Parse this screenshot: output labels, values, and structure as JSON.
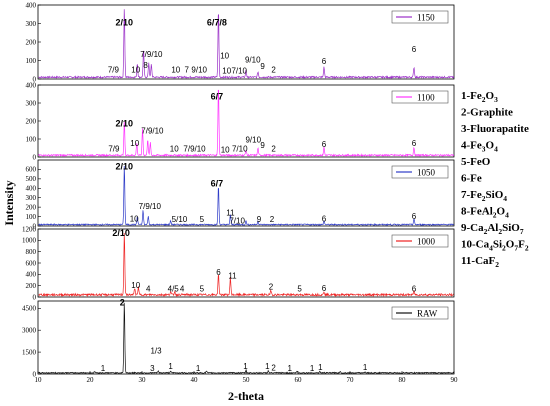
{
  "chart_data": {
    "type": "line",
    "xlabel": "2-theta",
    "ylabel": "Intensity",
    "xlim": [
      10,
      90
    ],
    "xticks": [
      "10",
      "20",
      "30",
      "40",
      "50",
      "60",
      "70",
      "80",
      "90"
    ],
    "panels": [
      {
        "name": "1150",
        "color": "#9b30c8",
        "ylim": [
          0,
          400
        ],
        "yticks": [
          "0",
          "100",
          "200",
          "300",
          "400"
        ],
        "baseline": 10,
        "peaks": [
          [
            26.6,
            380
          ],
          [
            29.1,
            75
          ],
          [
            30.3,
            150
          ],
          [
            31.3,
            80
          ],
          [
            31.8,
            70
          ],
          [
            44.7,
            370
          ],
          [
            50.0,
            40
          ],
          [
            52.3,
            30
          ],
          [
            65.0,
            55
          ],
          [
            82.3,
            55
          ]
        ],
        "labels": [
          {
            "t": "2/10",
            "x": 26.6,
            "y": 290,
            "bold": true
          },
          {
            "t": "6/7/8",
            "x": 44.4,
            "y": 290,
            "bold": true
          },
          {
            "t": "7/9",
            "x": 24.5,
            "y": 35
          },
          {
            "t": "10",
            "x": 28.8,
            "y": 35
          },
          {
            "t": "7/9/10",
            "x": 31.8,
            "y": 120
          },
          {
            "t": "8",
            "x": 30.7,
            "y": 60
          },
          {
            "t": "10",
            "x": 36.5,
            "y": 35
          },
          {
            "t": "7",
            "x": 38.6,
            "y": 35
          },
          {
            "t": "9/10",
            "x": 41.0,
            "y": 35
          },
          {
            "t": "10",
            "x": 45.9,
            "y": 110
          },
          {
            "t": "10",
            "x": 46.3,
            "y": 30
          },
          {
            "t": "7/10",
            "x": 48.7,
            "y": 30
          },
          {
            "t": "9/10",
            "x": 51.3,
            "y": 90
          },
          {
            "t": "9",
            "x": 53.2,
            "y": 55
          },
          {
            "t": "2",
            "x": 55.3,
            "y": 35
          },
          {
            "t": "6",
            "x": 65.0,
            "y": 80
          },
          {
            "t": "6",
            "x": 82.3,
            "y": 145
          }
        ]
      },
      {
        "name": "1100",
        "color": "#ff33ff",
        "ylim": [
          0,
          400
        ],
        "yticks": [
          "0",
          "100",
          "200",
          "300",
          "400"
        ],
        "baseline": 10,
        "peaks": [
          [
            26.6,
            190
          ],
          [
            29.0,
            70
          ],
          [
            30.1,
            150
          ],
          [
            31.1,
            90
          ],
          [
            31.6,
            70
          ],
          [
            44.7,
            400
          ],
          [
            50.0,
            30
          ],
          [
            52.3,
            40
          ],
          [
            65.0,
            45
          ],
          [
            82.3,
            45
          ]
        ],
        "labels": [
          {
            "t": "2/10",
            "x": 26.6,
            "y": 170,
            "bold": true
          },
          {
            "t": "6/7",
            "x": 44.4,
            "y": 320,
            "bold": true
          },
          {
            "t": "7/9",
            "x": 24.6,
            "y": 30
          },
          {
            "t": "10",
            "x": 28.6,
            "y": 60
          },
          {
            "t": "7/9/10",
            "x": 32.0,
            "y": 130
          },
          {
            "t": "10",
            "x": 36.2,
            "y": 30
          },
          {
            "t": "7/9/10",
            "x": 40.1,
            "y": 30
          },
          {
            "t": "10",
            "x": 46.0,
            "y": 25
          },
          {
            "t": "7/10",
            "x": 48.8,
            "y": 30
          },
          {
            "t": "9/10",
            "x": 51.4,
            "y": 80
          },
          {
            "t": "9",
            "x": 53.2,
            "y": 50
          },
          {
            "t": "2",
            "x": 55.3,
            "y": 30
          },
          {
            "t": "6",
            "x": 65.0,
            "y": 55
          },
          {
            "t": "6",
            "x": 82.3,
            "y": 60
          }
        ]
      },
      {
        "name": "1050",
        "color": "#2f3cc8",
        "ylim": [
          0,
          700
        ],
        "yticks": [
          "0",
          "100",
          "200",
          "300",
          "400",
          "500",
          "600"
        ],
        "baseline": 15,
        "peaks": [
          [
            26.6,
            640
          ],
          [
            29.1,
            80
          ],
          [
            30.2,
            150
          ],
          [
            31.2,
            90
          ],
          [
            35.5,
            40
          ],
          [
            44.7,
            420
          ],
          [
            47.0,
            110
          ],
          [
            50.0,
            40
          ],
          [
            52.3,
            40
          ],
          [
            65.0,
            40
          ],
          [
            82.3,
            60
          ]
        ],
        "labels": [
          {
            "t": "2/10",
            "x": 26.6,
            "y": 600,
            "bold": true
          },
          {
            "t": "6/7",
            "x": 44.4,
            "y": 420,
            "bold": true
          },
          {
            "t": "7/9/10",
            "x": 31.5,
            "y": 180
          },
          {
            "t": "10",
            "x": 28.5,
            "y": 50
          },
          {
            "t": "5/10",
            "x": 37.2,
            "y": 40
          },
          {
            "t": "5",
            "x": 41.5,
            "y": 40
          },
          {
            "t": "11",
            "x": 47.0,
            "y": 110
          },
          {
            "t": "7/10",
            "x": 48.3,
            "y": 25
          },
          {
            "t": "9",
            "x": 52.5,
            "y": 40
          },
          {
            "t": "2",
            "x": 55.0,
            "y": 40
          },
          {
            "t": "6",
            "x": 65.0,
            "y": 50
          },
          {
            "t": "6",
            "x": 82.3,
            "y": 75
          }
        ]
      },
      {
        "name": "1000",
        "color": "#ee2222",
        "ylim": [
          0,
          1200
        ],
        "yticks": [
          "0",
          "200",
          "400",
          "600",
          "800",
          "1000",
          "1200"
        ],
        "baseline": 40,
        "peaks": [
          [
            26.6,
            1120
          ],
          [
            28.6,
            120
          ],
          [
            29.3,
            130
          ],
          [
            35.5,
            60
          ],
          [
            36.3,
            60
          ],
          [
            44.7,
            380
          ],
          [
            47.0,
            310
          ],
          [
            54.8,
            80
          ],
          [
            65.0,
            60
          ],
          [
            82.3,
            60
          ]
        ],
        "labels": [
          {
            "t": "2/10",
            "x": 26.0,
            "y": 1080,
            "bold": true
          },
          {
            "t": "10",
            "x": 28.8,
            "y": 160
          },
          {
            "t": "4",
            "x": 31.2,
            "y": 100
          },
          {
            "t": "4/5",
            "x": 36.0,
            "y": 100
          },
          {
            "t": "4",
            "x": 37.7,
            "y": 100
          },
          {
            "t": "5",
            "x": 41.5,
            "y": 100
          },
          {
            "t": "6",
            "x": 44.7,
            "y": 390
          },
          {
            "t": "11",
            "x": 47.4,
            "y": 330
          },
          {
            "t": "2",
            "x": 54.8,
            "y": 130
          },
          {
            "t": "5",
            "x": 60.3,
            "y": 100
          },
          {
            "t": "6",
            "x": 65.0,
            "y": 110
          },
          {
            "t": "6",
            "x": 82.3,
            "y": 100
          }
        ]
      },
      {
        "name": "RAW",
        "color": "#111111",
        "ylim": [
          0,
          5000
        ],
        "yticks": [
          "0",
          "1500",
          "3000",
          "4500"
        ],
        "baseline": 80,
        "peaks": [
          [
            20.9,
            80
          ],
          [
            26.6,
            4900
          ],
          [
            33.1,
            120
          ],
          [
            35.5,
            120
          ],
          [
            42.4,
            120
          ],
          [
            50.0,
            180
          ],
          [
            54.3,
            150
          ],
          [
            59.8,
            100
          ],
          [
            64.2,
            80
          ],
          [
            68.1,
            80
          ],
          [
            72.9,
            60
          ]
        ],
        "labels": [
          {
            "t": "2",
            "x": 26.2,
            "y": 4700,
            "bold": true
          },
          {
            "t": "1",
            "x": 22.5,
            "y": 200
          },
          {
            "t": "1/3",
            "x": 32.7,
            "y": 1400
          },
          {
            "t": "3",
            "x": 32.0,
            "y": 200
          },
          {
            "t": "1",
            "x": 35.5,
            "y": 350
          },
          {
            "t": "1",
            "x": 40.8,
            "y": 200
          },
          {
            "t": "1",
            "x": 49.9,
            "y": 350
          },
          {
            "t": "1",
            "x": 54.1,
            "y": 350
          },
          {
            "t": "2",
            "x": 55.3,
            "y": 250
          },
          {
            "t": "1",
            "x": 58.4,
            "y": 200
          },
          {
            "t": "1",
            "x": 62.7,
            "y": 200
          },
          {
            "t": "1",
            "x": 64.3,
            "y": 270
          },
          {
            "t": "1",
            "x": 72.9,
            "y": 270
          }
        ]
      }
    ]
  },
  "phase_list": [
    {
      "num": "1",
      "parts": [
        [
          "-Fe",
          ""
        ],
        [
          "2",
          "sub"
        ],
        [
          "O",
          ""
        ],
        [
          "3",
          "sub"
        ]
      ]
    },
    {
      "num": "2",
      "parts": [
        [
          "-Graphite",
          ""
        ]
      ]
    },
    {
      "num": "3",
      "parts": [
        [
          "-Fluorapatite",
          ""
        ]
      ]
    },
    {
      "num": "4",
      "parts": [
        [
          "-Fe",
          ""
        ],
        [
          "3",
          "sub"
        ],
        [
          "O",
          ""
        ],
        [
          "4",
          "sub"
        ]
      ]
    },
    {
      "num": "5",
      "parts": [
        [
          "-FeO",
          ""
        ]
      ]
    },
    {
      "num": "6",
      "parts": [
        [
          "-Fe",
          ""
        ]
      ]
    },
    {
      "num": "7",
      "parts": [
        [
          "-Fe",
          ""
        ],
        [
          "2",
          "sub"
        ],
        [
          "SiO",
          ""
        ],
        [
          "4",
          "sub"
        ]
      ]
    },
    {
      "num": "8",
      "parts": [
        [
          "-FeAl",
          ""
        ],
        [
          "2",
          "sub"
        ],
        [
          "O",
          ""
        ],
        [
          "4",
          "sub"
        ]
      ]
    },
    {
      "num": "9",
      "parts": [
        [
          "-Ca",
          ""
        ],
        [
          "2",
          "sub"
        ],
        [
          "Al",
          ""
        ],
        [
          "2",
          "sub"
        ],
        [
          "SiO",
          ""
        ],
        [
          "7",
          "sub"
        ]
      ]
    },
    {
      "num": "10",
      "parts": [
        [
          "-Ca",
          ""
        ],
        [
          "4",
          "sub"
        ],
        [
          "Si",
          ""
        ],
        [
          "2",
          "sub"
        ],
        [
          "O",
          ""
        ],
        [
          "7",
          "sub"
        ],
        [
          "F",
          ""
        ],
        [
          "2",
          "sub"
        ]
      ]
    },
    {
      "num": "11",
      "parts": [
        [
          "-CaF",
          ""
        ],
        [
          "2",
          "sub"
        ]
      ]
    }
  ]
}
